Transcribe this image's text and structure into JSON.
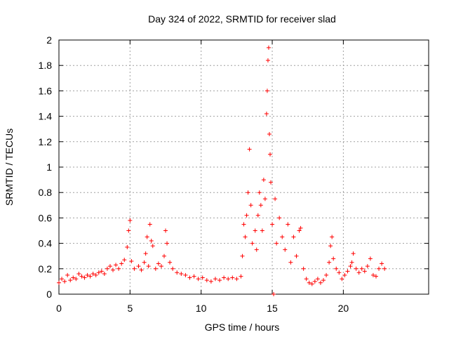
{
  "chart_data": {
    "type": "scatter",
    "title": "Day 324 of 2022, SRMTID for receiver slad",
    "xlabel": "GPS time / hours",
    "ylabel": "SRMTID / TECUs",
    "xlim": [
      0,
      26
    ],
    "ylim": [
      0,
      2
    ],
    "xticks": [
      0,
      5,
      10,
      15,
      20
    ],
    "xtick_labels": [
      "0",
      "5",
      "10",
      "15",
      "20"
    ],
    "yticks": [
      0,
      0.2,
      0.4,
      0.6,
      0.8,
      1,
      1.2,
      1.4,
      1.6,
      1.8,
      2
    ],
    "ytick_labels": [
      "0",
      "0.2",
      "0.4",
      "0.6",
      "0.8",
      "1",
      "1.2",
      "1.4",
      "1.6",
      "1.8",
      "2"
    ],
    "grid": true,
    "marker": "+",
    "color": "#ff0000",
    "series": [
      {
        "name": "SRMTID",
        "points": [
          [
            0.0,
            0.09
          ],
          [
            0.2,
            0.12
          ],
          [
            0.4,
            0.1
          ],
          [
            0.6,
            0.15
          ],
          [
            0.8,
            0.11
          ],
          [
            1.0,
            0.13
          ],
          [
            1.2,
            0.12
          ],
          [
            1.4,
            0.16
          ],
          [
            1.6,
            0.14
          ],
          [
            1.8,
            0.13
          ],
          [
            2.0,
            0.15
          ],
          [
            2.2,
            0.14
          ],
          [
            2.4,
            0.16
          ],
          [
            2.6,
            0.15
          ],
          [
            2.8,
            0.17
          ],
          [
            3.0,
            0.18
          ],
          [
            3.2,
            0.16
          ],
          [
            3.4,
            0.2
          ],
          [
            3.6,
            0.22
          ],
          [
            3.8,
            0.19
          ],
          [
            4.0,
            0.23
          ],
          [
            4.2,
            0.2
          ],
          [
            4.4,
            0.24
          ],
          [
            4.6,
            0.27
          ],
          [
            4.8,
            0.37
          ],
          [
            4.9,
            0.5
          ],
          [
            5.0,
            0.58
          ],
          [
            5.1,
            0.26
          ],
          [
            5.3,
            0.2
          ],
          [
            5.6,
            0.22
          ],
          [
            5.8,
            0.19
          ],
          [
            6.0,
            0.25
          ],
          [
            6.1,
            0.32
          ],
          [
            6.2,
            0.45
          ],
          [
            6.3,
            0.22
          ],
          [
            6.4,
            0.55
          ],
          [
            6.5,
            0.42
          ],
          [
            6.6,
            0.38
          ],
          [
            6.8,
            0.2
          ],
          [
            7.0,
            0.24
          ],
          [
            7.2,
            0.22
          ],
          [
            7.4,
            0.3
          ],
          [
            7.5,
            0.5
          ],
          [
            7.6,
            0.4
          ],
          [
            7.8,
            0.25
          ],
          [
            8.0,
            0.2
          ],
          [
            8.3,
            0.17
          ],
          [
            8.6,
            0.16
          ],
          [
            8.9,
            0.15
          ],
          [
            9.2,
            0.13
          ],
          [
            9.5,
            0.14
          ],
          [
            9.8,
            0.12
          ],
          [
            10.1,
            0.13
          ],
          [
            10.4,
            0.11
          ],
          [
            10.7,
            0.1
          ],
          [
            11.0,
            0.12
          ],
          [
            11.3,
            0.11
          ],
          [
            11.6,
            0.13
          ],
          [
            11.9,
            0.12
          ],
          [
            12.2,
            0.13
          ],
          [
            12.5,
            0.12
          ],
          [
            12.8,
            0.14
          ],
          [
            12.9,
            0.3
          ],
          [
            13.0,
            0.55
          ],
          [
            13.1,
            0.45
          ],
          [
            13.2,
            0.62
          ],
          [
            13.3,
            0.8
          ],
          [
            13.4,
            1.14
          ],
          [
            13.5,
            0.7
          ],
          [
            13.6,
            0.4
          ],
          [
            13.8,
            0.5
          ],
          [
            13.9,
            0.35
          ],
          [
            14.0,
            0.62
          ],
          [
            14.1,
            0.8
          ],
          [
            14.2,
            0.7
          ],
          [
            14.3,
            0.5
          ],
          [
            14.4,
            0.9
          ],
          [
            14.5,
            0.75
          ],
          [
            14.6,
            1.42
          ],
          [
            14.65,
            1.6
          ],
          [
            14.7,
            1.84
          ],
          [
            14.75,
            1.94
          ],
          [
            14.8,
            1.26
          ],
          [
            14.85,
            1.1
          ],
          [
            14.9,
            0.88
          ],
          [
            15.0,
            0.55
          ],
          [
            15.1,
            0.0
          ],
          [
            15.2,
            0.75
          ],
          [
            15.3,
            0.4
          ],
          [
            15.5,
            0.6
          ],
          [
            15.7,
            0.45
          ],
          [
            15.9,
            0.35
          ],
          [
            16.1,
            0.55
          ],
          [
            16.3,
            0.25
          ],
          [
            16.5,
            0.45
          ],
          [
            16.7,
            0.3
          ],
          [
            16.9,
            0.5
          ],
          [
            17.0,
            0.52
          ],
          [
            17.2,
            0.2
          ],
          [
            17.4,
            0.12
          ],
          [
            17.6,
            0.09
          ],
          [
            17.8,
            0.08
          ],
          [
            18.0,
            0.1
          ],
          [
            18.2,
            0.12
          ],
          [
            18.4,
            0.09
          ],
          [
            18.6,
            0.11
          ],
          [
            18.8,
            0.15
          ],
          [
            19.0,
            0.25
          ],
          [
            19.1,
            0.38
          ],
          [
            19.2,
            0.45
          ],
          [
            19.3,
            0.28
          ],
          [
            19.5,
            0.2
          ],
          [
            19.7,
            0.17
          ],
          [
            19.9,
            0.12
          ],
          [
            20.1,
            0.15
          ],
          [
            20.3,
            0.18
          ],
          [
            20.5,
            0.22
          ],
          [
            20.6,
            0.25
          ],
          [
            20.7,
            0.32
          ],
          [
            20.9,
            0.2
          ],
          [
            21.1,
            0.17
          ],
          [
            21.3,
            0.2
          ],
          [
            21.5,
            0.18
          ],
          [
            21.7,
            0.22
          ],
          [
            21.9,
            0.28
          ],
          [
            22.1,
            0.15
          ],
          [
            22.3,
            0.14
          ],
          [
            22.5,
            0.2
          ],
          [
            22.7,
            0.24
          ],
          [
            22.9,
            0.2
          ]
        ]
      }
    ]
  }
}
